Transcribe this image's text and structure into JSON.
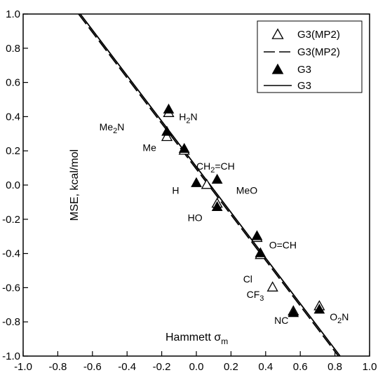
{
  "chart_data": {
    "type": "scatter",
    "xlabel": "Hammett σm",
    "xlabel_main": "Hammett σ",
    "xlabel_sub": "m",
    "ylabel": "MSE, kcal/mol",
    "xlim": [
      -1.0,
      1.0
    ],
    "ylim": [
      -1.0,
      1.0
    ],
    "xticks": [
      "-1.0",
      "-0.8",
      "-0.6",
      "-0.4",
      "-0.2",
      "0.0",
      "0.2",
      "0.4",
      "0.6",
      "0.8",
      "1.0"
    ],
    "yticks": [
      "1.0",
      "0.8",
      "0.6",
      "0.4",
      "0.2",
      "0.0",
      "-0.2",
      "-0.4",
      "-0.6",
      "-0.8",
      "-1.0"
    ],
    "grid": false,
    "legend_position": "top-right",
    "legend": [
      {
        "label": "G3(MP2)",
        "kind": "open-triangle"
      },
      {
        "label": "G3(MP2)",
        "kind": "dashed-line"
      },
      {
        "label": "G3",
        "kind": "filled-triangle"
      },
      {
        "label": "G3",
        "kind": "solid-line"
      }
    ],
    "series": [
      {
        "name": "G3(MP2)",
        "marker": "open-triangle",
        "points": [
          {
            "x": -0.16,
            "y": 0.42
          },
          {
            "x": -0.17,
            "y": 0.28
          },
          {
            "x": -0.07,
            "y": 0.2
          },
          {
            "x": 0.06,
            "y": 0.0
          },
          {
            "x": 0.12,
            "y": -0.11
          },
          {
            "x": 0.35,
            "y": -0.31
          },
          {
            "x": 0.37,
            "y": -0.41
          },
          {
            "x": 0.44,
            "y": -0.6
          },
          {
            "x": 0.56,
            "y": -0.74
          },
          {
            "x": 0.71,
            "y": -0.71
          }
        ]
      },
      {
        "name": "G3",
        "marker": "filled-triangle",
        "points": [
          {
            "x": -0.16,
            "y": 0.44
          },
          {
            "x": -0.17,
            "y": 0.31
          },
          {
            "x": -0.07,
            "y": 0.21
          },
          {
            "x": 0.0,
            "y": 0.01
          },
          {
            "x": 0.12,
            "y": 0.03
          },
          {
            "x": 0.12,
            "y": -0.13
          },
          {
            "x": 0.35,
            "y": -0.3
          },
          {
            "x": 0.37,
            "y": -0.4
          },
          {
            "x": 0.56,
            "y": -0.75
          },
          {
            "x": 0.71,
            "y": -0.73
          }
        ]
      }
    ],
    "fit_lines": [
      {
        "name": "G3(MP2)",
        "style": "dashed",
        "from": [
          -0.68,
          1.0
        ],
        "to": [
          0.82,
          -1.0
        ]
      },
      {
        "name": "G3",
        "style": "solid",
        "from": [
          -0.67,
          1.0
        ],
        "to": [
          0.83,
          -1.0
        ]
      }
    ],
    "annotations": [
      {
        "base": "H",
        "sub": "2",
        "rest": "N",
        "x": -0.1,
        "y": 0.4
      },
      {
        "base": "Me",
        "sub": "2",
        "rest": "N",
        "x": -0.56,
        "y": 0.34
      },
      {
        "base": "Me",
        "sub": "",
        "rest": "",
        "x": -0.31,
        "y": 0.22
      },
      {
        "base": "CH",
        "sub": "2",
        "rest": "=CH",
        "x": 0.0,
        "y": 0.11
      },
      {
        "base": "H",
        "sub": "",
        "rest": "",
        "x": -0.14,
        "y": -0.03
      },
      {
        "base": "MeO",
        "sub": "",
        "rest": "",
        "x": 0.23,
        "y": -0.03
      },
      {
        "base": "HO",
        "sub": "",
        "rest": "",
        "x": -0.05,
        "y": -0.19
      },
      {
        "base": "O=CH",
        "sub": "",
        "rest": "",
        "x": 0.42,
        "y": -0.35
      },
      {
        "base": "Cl",
        "sub": "",
        "rest": "",
        "x": 0.27,
        "y": -0.55
      },
      {
        "base": "CF",
        "sub": "3",
        "rest": "",
        "x": 0.29,
        "y": -0.64
      },
      {
        "base": "NC",
        "sub": "",
        "rest": "",
        "x": 0.45,
        "y": -0.79
      },
      {
        "base": "O",
        "sub": "2",
        "rest": "N",
        "x": 0.77,
        "y": -0.77
      }
    ]
  }
}
